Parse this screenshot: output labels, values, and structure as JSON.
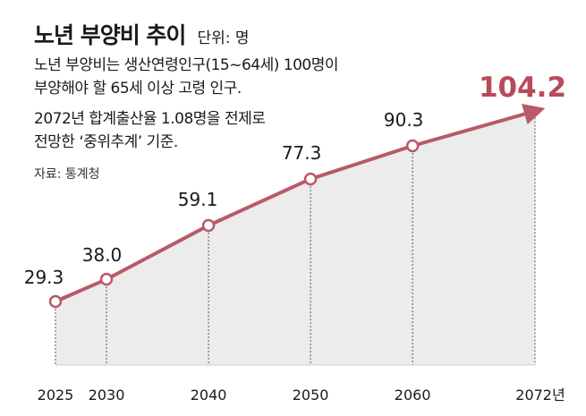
{
  "header": {
    "title": "노년 부양비 추이",
    "unit": "단위: 명"
  },
  "notes": {
    "line1": "노년 부양비는 생산연령인구(15~64세) 100명이",
    "line2": "부양해야 할 65세 이상 고령 인구.",
    "line3": "2072년 합계출산율 1.08명을 전제로",
    "line4": "전망한 ‘중위추계’ 기준."
  },
  "source": "자료: 통계청",
  "colors": {
    "line": "#b85a68",
    "highlight": "#b84a5c",
    "fill": "#ececec",
    "text": "#1a1a1a"
  },
  "chart_data": {
    "type": "area",
    "title": "노년 부양비 추이",
    "unit": "단위: 명",
    "categories": [
      "2025",
      "2030",
      "2040",
      "2050",
      "2060",
      "2072년"
    ],
    "x": [
      2025,
      2030,
      2040,
      2050,
      2060,
      2072
    ],
    "values": [
      29.3,
      38.0,
      59.1,
      77.3,
      90.3,
      104.2
    ],
    "labels": [
      "29.3",
      "38.0",
      "59.1",
      "77.3",
      "90.3",
      "104.2"
    ],
    "highlight_last": true,
    "grid": false,
    "legend": "none"
  }
}
